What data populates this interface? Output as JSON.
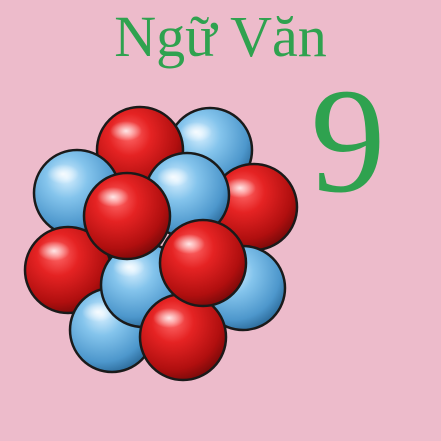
{
  "title": "Ngữ Văn",
  "grade": "9",
  "colors": {
    "background": "#edbbcb",
    "text": "#2fa24f",
    "red_sphere": "#d01b1b",
    "blue_sphere": "#6ab0de"
  },
  "illustration": {
    "icon": "atom-nucleus-cluster-icon"
  }
}
